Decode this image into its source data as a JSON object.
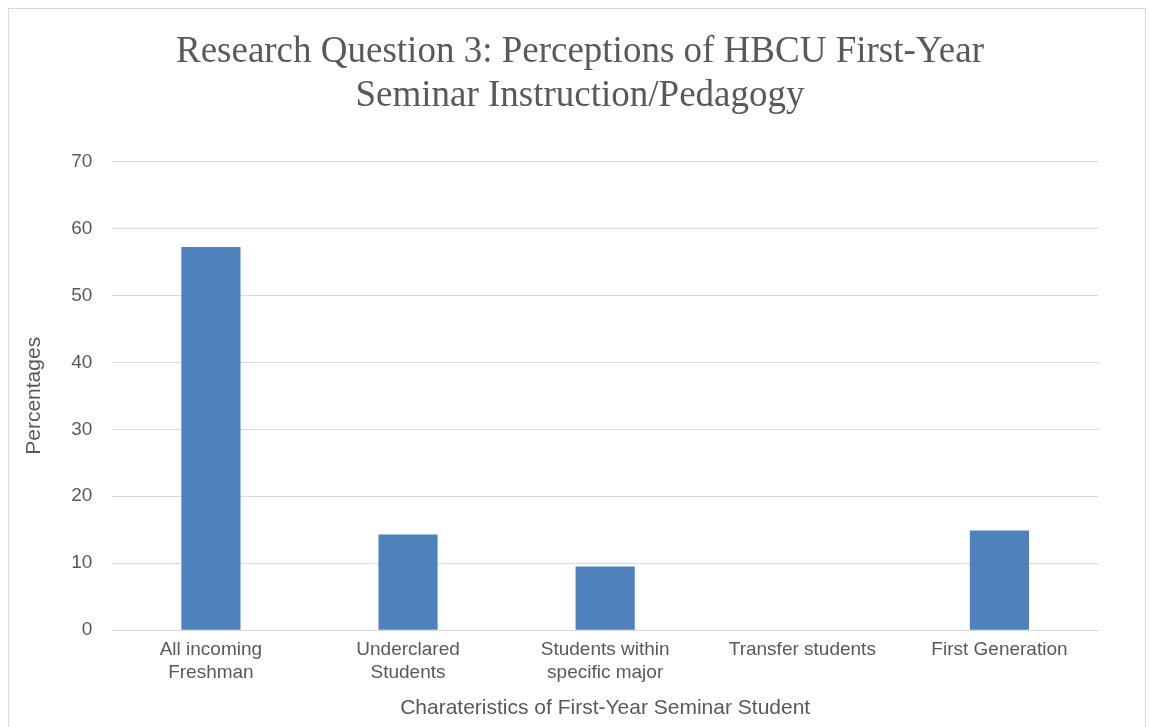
{
  "chart_data": {
    "type": "bar",
    "title": "Research Question 3: Perceptions of HBCU First-Year Seminar Instruction/Pedagogy",
    "xlabel": "Charateristics of First-Year Seminar Student",
    "ylabel": "Percentages",
    "categories": [
      "All incoming Freshman",
      "Underclared Students",
      "Students within specific major",
      "Transfer students",
      "First Generation"
    ],
    "values": [
      57.2,
      14.3,
      9.5,
      0,
      14.9
    ],
    "color": "#4f81bd",
    "ylim": [
      0,
      70
    ],
    "yticks": [
      0,
      10,
      20,
      30,
      40,
      50,
      60,
      70
    ],
    "grid": "y",
    "legend": false
  }
}
